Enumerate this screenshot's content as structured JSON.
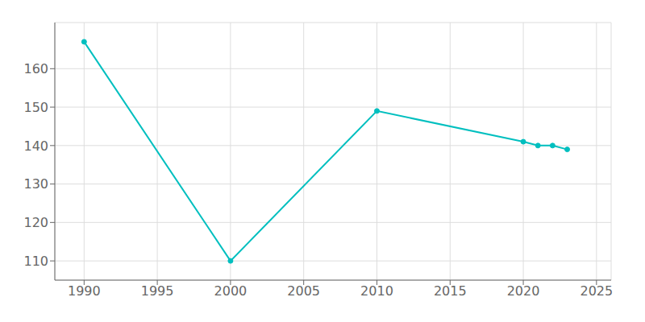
{
  "chart_data": {
    "type": "line",
    "x": [
      1990,
      2000,
      2010,
      2020,
      2021,
      2022,
      2023
    ],
    "values": [
      167,
      110,
      149,
      141,
      140,
      140,
      139
    ],
    "color": "#00BFBF",
    "marker": "circle",
    "xlim": [
      1988,
      2026
    ],
    "ylim": [
      105,
      172
    ],
    "xticks": [
      1990,
      1995,
      2000,
      2005,
      2010,
      2015,
      2020,
      2025
    ],
    "yticks": [
      110,
      120,
      130,
      140,
      150,
      160
    ],
    "grid": true
  }
}
